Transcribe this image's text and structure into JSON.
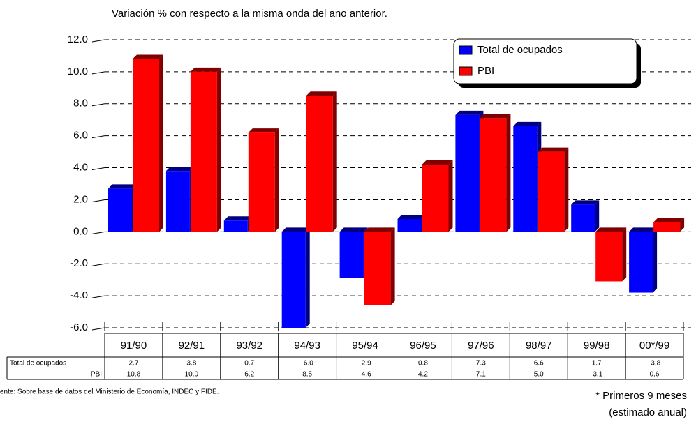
{
  "chart_data": {
    "type": "bar",
    "title": "Variación % con respecto a la misma onda del ano anterior.",
    "categories": [
      "91/90",
      "92/91",
      "93/92",
      "94/93",
      "95/94",
      "96/95",
      "97/96",
      "98/97",
      "99/98",
      "00*/99"
    ],
    "series": [
      {
        "name": "Total de ocupados",
        "color": "#0000ff",
        "side": "#000080",
        "values": [
          2.7,
          3.8,
          0.7,
          -6.0,
          -2.9,
          0.8,
          7.3,
          6.6,
          1.7,
          -3.8
        ],
        "value_labels": [
          "2.7",
          "3.8",
          "0.7",
          "-6.0",
          "-2.9",
          "0.8",
          "7.3",
          "6.6",
          "1.7",
          "-3.8"
        ]
      },
      {
        "name": "PBI",
        "color": "#ff0000",
        "side": "#800000",
        "values": [
          10.8,
          10.0,
          6.2,
          8.5,
          -4.6,
          4.2,
          7.1,
          5.0,
          -3.1,
          0.6
        ],
        "value_labels": [
          "10.8",
          "10.0",
          "6.2",
          "8.5",
          "-4.6",
          "4.2",
          "7.1",
          "5.0",
          "-3.1",
          "0.6"
        ]
      }
    ],
    "ylim": [
      -6,
      12
    ],
    "yticks": [
      {
        "value": -6,
        "label": "-6.0"
      },
      {
        "value": -4,
        "label": "-4.0"
      },
      {
        "value": -2,
        "label": "-2.0"
      },
      {
        "value": 0,
        "label": "0.0"
      },
      {
        "value": 2,
        "label": "2.0"
      },
      {
        "value": 4,
        "label": "4.0"
      },
      {
        "value": 6,
        "label": "6.0"
      },
      {
        "value": 8,
        "label": "8.0"
      },
      {
        "value": 10,
        "label": "10.0"
      },
      {
        "value": 12,
        "label": "12.0"
      }
    ],
    "grid": true,
    "legend": "top-right",
    "source": "ente: Sobre base de datos del Ministerio de Economía, INDEC y FIDE.",
    "notes": [
      "* Primeros 9 meses",
      "(estimado anual)"
    ]
  }
}
